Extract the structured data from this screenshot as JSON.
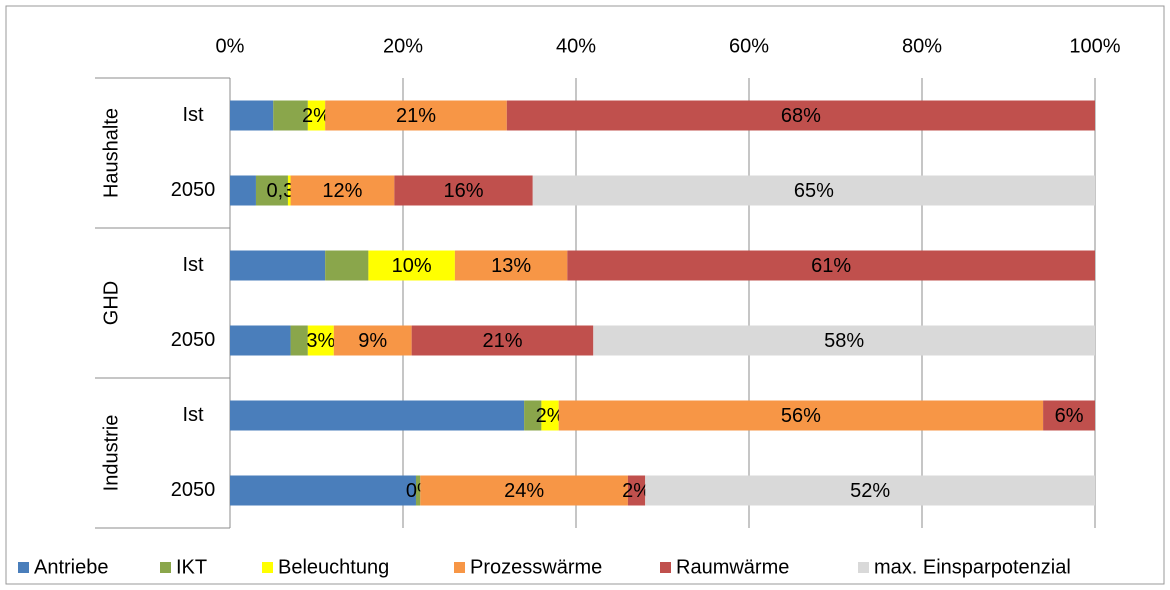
{
  "chart_data": {
    "type": "stacked_barh",
    "groups": [
      "Haushalte",
      "GHD",
      "Industrie"
    ],
    "categories": [
      "Ist",
      "2050",
      "Ist",
      "2050",
      "Ist",
      "2050"
    ],
    "series": [
      {
        "name": "Antriebe",
        "color": "#4a7ebb",
        "values": [
          5,
          3,
          11,
          7,
          34,
          21.5
        ],
        "value_labels": [
          null,
          null,
          null,
          null,
          null,
          null
        ]
      },
      {
        "name": "IKT",
        "color": "#8aa64b",
        "values": [
          4,
          3.7,
          5,
          2,
          2,
          0.5
        ],
        "value_labels": [
          null,
          null,
          null,
          null,
          null,
          null
        ]
      },
      {
        "name": "Beleuchtung",
        "color": "#ffff00",
        "values": [
          2,
          0.3,
          10,
          3,
          2,
          0
        ],
        "value_labels": [
          "2%",
          "0,3%",
          "10%",
          "3%",
          "2%",
          "0%"
        ]
      },
      {
        "name": "Prozesswärme",
        "color": "#f79646",
        "values": [
          21,
          12,
          13,
          9,
          56,
          24
        ],
        "value_labels": [
          "21%",
          "12%",
          "13%",
          "9%",
          "56%",
          "24%"
        ]
      },
      {
        "name": "Raumwärme",
        "color": "#c0504d",
        "values": [
          68,
          16,
          61,
          21,
          6,
          2
        ],
        "value_labels": [
          "68%",
          "16%",
          "61%",
          "21%",
          "6%",
          "2%"
        ]
      },
      {
        "name": "max. Einsparpotenzial",
        "color": "#d9d9d9",
        "values": [
          null,
          65,
          null,
          58,
          null,
          52
        ],
        "value_labels": [
          null,
          "65%",
          null,
          "58%",
          null,
          "52%"
        ]
      }
    ],
    "xlim": [
      0,
      100
    ],
    "xticks": [
      {
        "value": 0,
        "label": "0%"
      },
      {
        "value": 20,
        "label": "20%"
      },
      {
        "value": 40,
        "label": "40%"
      },
      {
        "value": 60,
        "label": "60%"
      },
      {
        "value": 80,
        "label": "80%"
      },
      {
        "value": 100,
        "label": "100%"
      }
    ],
    "grid": true,
    "legend": "bottom"
  }
}
